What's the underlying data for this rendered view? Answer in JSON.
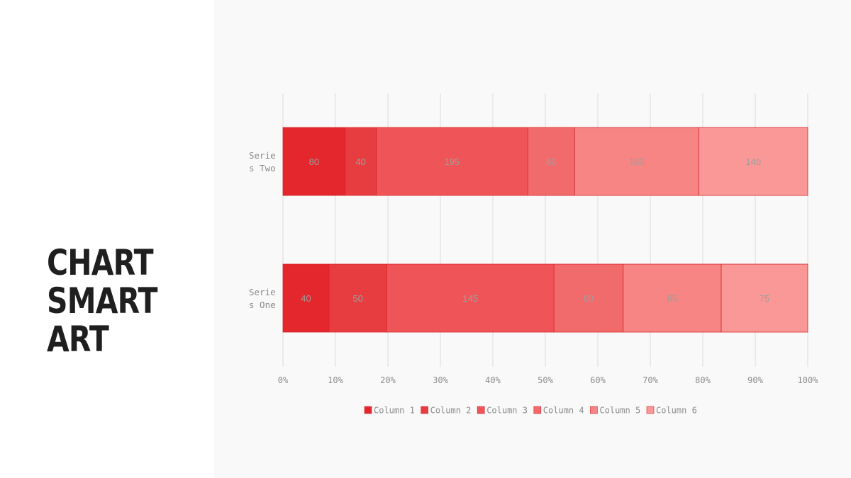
{
  "slide": {
    "title_lines": [
      "CHART",
      "SMART",
      "ART"
    ]
  },
  "chart_data": {
    "type": "bar",
    "orientation": "horizontal",
    "stacked": "percent",
    "categories": [
      "Series Two",
      "Series One"
    ],
    "category_label_lines": [
      [
        "Serie",
        "s Two"
      ],
      [
        "Serie",
        "s One"
      ]
    ],
    "series": [
      {
        "name": "Column 1",
        "values": [
          80,
          40
        ],
        "color": "#e3272c"
      },
      {
        "name": "Column 2",
        "values": [
          40,
          50
        ],
        "color": "#e83d40"
      },
      {
        "name": "Column 3",
        "values": [
          195,
          145
        ],
        "color": "#ef5558"
      },
      {
        "name": "Column 4",
        "values": [
          60,
          60
        ],
        "color": "#f26b6c"
      },
      {
        "name": "Column 5",
        "values": [
          160,
          85
        ],
        "color": "#f68583"
      },
      {
        "name": "Column 6",
        "values": [
          140,
          75
        ],
        "color": "#fa9898"
      }
    ],
    "x_ticks": [
      "0%",
      "10%",
      "20%",
      "30%",
      "40%",
      "50%",
      "60%",
      "70%",
      "80%",
      "90%",
      "100%"
    ],
    "xlim": [
      0,
      100
    ],
    "grid": "vertical",
    "legend_position": "bottom",
    "data_labels": true
  }
}
